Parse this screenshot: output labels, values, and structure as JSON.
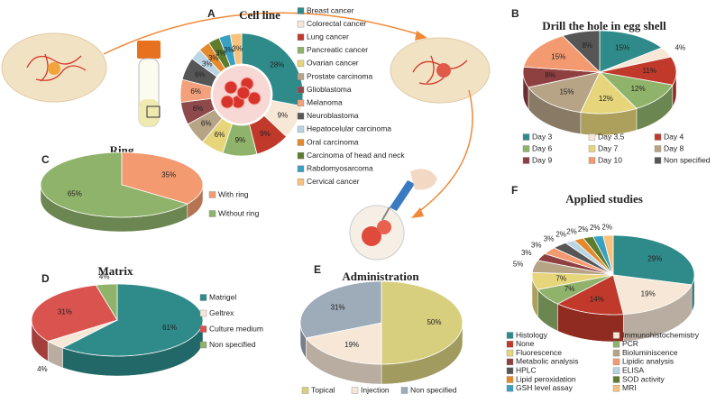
{
  "chart_data": [
    {
      "type": "donut",
      "panel": "A",
      "title": "Cell line",
      "categories": [
        "Breast cancer",
        "Colorectal cancer",
        "Lung cancer",
        "Pancreatic cancer",
        "Ovarian cancer",
        "Prostate carcinoma",
        "Glioblastoma",
        "Melanoma",
        "Neuroblastoma",
        "Hepatocelular carcinoma",
        "Oral carcinoma",
        "Carcinoma of head and neck",
        "Rabdomyosarcoma",
        "Cervical cancer"
      ],
      "values": [
        28,
        9,
        9,
        9,
        6,
        6,
        6,
        6,
        6,
        3,
        3,
        3,
        3,
        3
      ],
      "value_labels": [
        "28%",
        "9%",
        "9%",
        "9%",
        "6%",
        "6%",
        "6%",
        "6%",
        "6%",
        "3%",
        "3%",
        "3%",
        "3%",
        "3%"
      ],
      "colors": [
        "#2f8a8a",
        "#f6e7d6",
        "#c0392b",
        "#8fb36a",
        "#e6d57a",
        "#b7a386",
        "#8e4a4a",
        "#f3a07c",
        "#565656",
        "#b9d5e4",
        "#e58a2c",
        "#5d7d2c",
        "#3aa0c2",
        "#f8c27c"
      ]
    },
    {
      "type": "pie3d",
      "panel": "B",
      "title": "Drill the hole in egg shell",
      "categories": [
        "Day 3",
        "Day 3,5",
        "Day 4",
        "Day 6",
        "Day 7",
        "Day 8",
        "Day 9",
        "Day 10",
        "Non specified"
      ],
      "values": [
        15,
        4,
        11,
        12,
        12,
        15,
        8,
        15,
        8
      ],
      "value_labels": [
        "15%",
        "4%",
        "11%",
        "12%",
        "12%",
        "15%",
        "8%",
        "15%",
        "8%"
      ],
      "colors": [
        "#2f8a8a",
        "#f6e7d6",
        "#c0392b",
        "#8fb36a",
        "#e6d57a",
        "#b7a386",
        "#8e3f3f",
        "#f39a70",
        "#565656"
      ]
    },
    {
      "type": "pie3d",
      "panel": "C",
      "title": "Ring",
      "categories": [
        "With ring",
        "Without ring"
      ],
      "values": [
        35,
        65
      ],
      "value_labels": [
        "35%",
        "65%"
      ],
      "colors": [
        "#f39a70",
        "#8fb36a"
      ]
    },
    {
      "type": "pie3d",
      "panel": "D",
      "title": "Matrix",
      "categories": [
        "Matrigel",
        "Geltrex",
        "Culture medium",
        "Non specified"
      ],
      "values": [
        61,
        4,
        31,
        4
      ],
      "value_labels": [
        "61%",
        "4%",
        "31%",
        "4%"
      ],
      "colors": [
        "#2f8a8a",
        "#f6e7d6",
        "#d9534f",
        "#8fb36a"
      ]
    },
    {
      "type": "pie3d",
      "panel": "E",
      "title": "Administration",
      "categories": [
        "Topical",
        "Injection",
        "Non specified"
      ],
      "values": [
        50,
        19,
        31
      ],
      "value_labels": [
        "50%",
        "19%",
        "31%"
      ],
      "colors": [
        "#d8cf7e",
        "#f6e7d6",
        "#9eabb8"
      ]
    },
    {
      "type": "pie3d",
      "panel": "F",
      "title": "Applied studies",
      "categories": [
        "Histology",
        "Immunohistochemistry",
        "None",
        "PCR",
        "Fluorescence",
        "Bioluminiscence",
        "Metabolic analysis",
        "Lipidic analysis",
        "HPLC",
        "ELISA",
        "Lipid peroxidation",
        "SOD activity",
        "GSH level assay",
        "MRI"
      ],
      "values": [
        29,
        19,
        14,
        7,
        7,
        5,
        3,
        3,
        3,
        2,
        2,
        2,
        2,
        2
      ],
      "value_labels": [
        "29%",
        "19%",
        "14%",
        "7%",
        "7%",
        "5%",
        "3%",
        "3%",
        "3%",
        "2%",
        "2%",
        "2%",
        "2%",
        "2%"
      ],
      "colors": [
        "#2f8a8a",
        "#f6e7d6",
        "#c0392b",
        "#8fb36a",
        "#e6d57a",
        "#b7a386",
        "#8e3f3f",
        "#f39a70",
        "#565656",
        "#b9d5e4",
        "#e58a2c",
        "#5d7d2c",
        "#3aa0c2",
        "#f8c27c"
      ]
    }
  ]
}
